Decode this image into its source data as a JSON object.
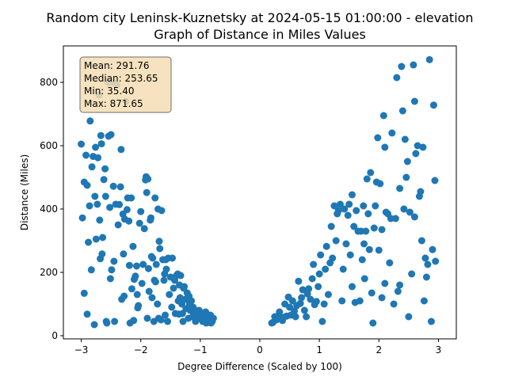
{
  "chart_data": {
    "type": "scatter",
    "title_line1": "Random city Leninsk-Kuznetsky at 2024-05-15 01:00:00  - elevation",
    "title_line2": "Graph of Distance in Miles Values",
    "xlabel": "Degree Difference (Scaled by 100)",
    "ylabel": "Distance (Miles)",
    "xlim": [
      -3.3,
      3.3
    ],
    "ylim": [
      -10,
      915
    ],
    "x_ticks": [
      -3,
      -2,
      -1,
      0,
      1,
      2,
      3
    ],
    "y_ticks": [
      0,
      200,
      400,
      600,
      800
    ],
    "grid": false,
    "marker_color": "#1f77b4",
    "stats_box": {
      "mean": "Mean: 291.76",
      "median": "Median: 253.65",
      "min": "Min: 35.40",
      "max": "Max: 871.65",
      "fill": "#f5deb3",
      "edge": "#555555"
    },
    "points": [
      {
        "x": -3.0,
        "y": 605
      },
      {
        "x": -2.98,
        "y": 372
      },
      {
        "x": -2.95,
        "y": 485
      },
      {
        "x": -2.95,
        "y": 134
      },
      {
        "x": -2.92,
        "y": 570
      },
      {
        "x": -2.9,
        "y": 475
      },
      {
        "x": -2.9,
        "y": 68
      },
      {
        "x": -2.88,
        "y": 295
      },
      {
        "x": -2.86,
        "y": 410
      },
      {
        "x": -2.85,
        "y": 678
      },
      {
        "x": -2.83,
        "y": 208
      },
      {
        "x": -2.82,
        "y": 533
      },
      {
        "x": -2.8,
        "y": 566
      },
      {
        "x": -2.78,
        "y": 35
      },
      {
        "x": -2.77,
        "y": 440
      },
      {
        "x": -2.76,
        "y": 595
      },
      {
        "x": -2.75,
        "y": 305
      },
      {
        "x": -2.73,
        "y": 415
      },
      {
        "x": -2.72,
        "y": 562
      },
      {
        "x": -2.7,
        "y": 760
      },
      {
        "x": -2.69,
        "y": 365
      },
      {
        "x": -2.68,
        "y": 243
      },
      {
        "x": -2.67,
        "y": 632
      },
      {
        "x": -2.66,
        "y": 606
      },
      {
        "x": -2.65,
        "y": 258
      },
      {
        "x": -2.64,
        "y": 310
      },
      {
        "x": -2.62,
        "y": 493
      },
      {
        "x": -2.6,
        "y": 527
      },
      {
        "x": -2.59,
        "y": 440
      },
      {
        "x": -2.58,
        "y": 45
      },
      {
        "x": -2.57,
        "y": 40
      },
      {
        "x": -2.55,
        "y": 800
      },
      {
        "x": -2.54,
        "y": 630
      },
      {
        "x": -2.52,
        "y": 405
      },
      {
        "x": -2.51,
        "y": 180
      },
      {
        "x": -2.5,
        "y": 635
      },
      {
        "x": -2.49,
        "y": 208
      },
      {
        "x": -2.47,
        "y": 800
      },
      {
        "x": -2.46,
        "y": 472
      },
      {
        "x": -2.45,
        "y": 235
      },
      {
        "x": -2.44,
        "y": 45
      },
      {
        "x": -2.42,
        "y": 415
      },
      {
        "x": -2.4,
        "y": 792
      },
      {
        "x": -2.38,
        "y": 350
      },
      {
        "x": -2.36,
        "y": 414
      },
      {
        "x": -2.34,
        "y": 470
      },
      {
        "x": -2.33,
        "y": 588
      },
      {
        "x": -2.32,
        "y": 115
      },
      {
        "x": -2.3,
        "y": 384
      },
      {
        "x": -2.29,
        "y": 258
      },
      {
        "x": -2.28,
        "y": 125
      },
      {
        "x": -2.27,
        "y": 368
      },
      {
        "x": -2.25,
        "y": 740
      },
      {
        "x": -2.23,
        "y": 398
      },
      {
        "x": -2.22,
        "y": 435
      },
      {
        "x": -2.2,
        "y": 362
      },
      {
        "x": -2.19,
        "y": 222
      },
      {
        "x": -2.18,
        "y": 40
      },
      {
        "x": -2.16,
        "y": 435
      },
      {
        "x": -2.15,
        "y": 148
      },
      {
        "x": -2.13,
        "y": 282
      },
      {
        "x": -2.12,
        "y": 48
      },
      {
        "x": -2.11,
        "y": 178
      },
      {
        "x": -2.09,
        "y": 188
      },
      {
        "x": -2.07,
        "y": 220
      },
      {
        "x": -2.06,
        "y": 130
      },
      {
        "x": -2.05,
        "y": 88
      },
      {
        "x": -2.04,
        "y": 95
      },
      {
        "x": -2.02,
        "y": 355
      },
      {
        "x": -2.0,
        "y": 392
      },
      {
        "x": -1.98,
        "y": 165
      },
      {
        "x": -1.96,
        "y": 225
      },
      {
        "x": -1.94,
        "y": 338
      },
      {
        "x": -1.92,
        "y": 492
      },
      {
        "x": -1.91,
        "y": 502
      },
      {
        "x": -1.9,
        "y": 452
      },
      {
        "x": -1.89,
        "y": 55
      },
      {
        "x": -1.88,
        "y": 495
      },
      {
        "x": -1.87,
        "y": 212
      },
      {
        "x": -1.86,
        "y": 140
      },
      {
        "x": -1.84,
        "y": 365
      },
      {
        "x": -1.83,
        "y": 372
      },
      {
        "x": -1.82,
        "y": 250
      },
      {
        "x": -1.81,
        "y": 120
      },
      {
        "x": -1.8,
        "y": 245
      },
      {
        "x": -1.78,
        "y": 45
      },
      {
        "x": -1.77,
        "y": 175
      },
      {
        "x": -1.76,
        "y": 435
      },
      {
        "x": -1.75,
        "y": 170
      },
      {
        "x": -1.74,
        "y": 225
      },
      {
        "x": -1.72,
        "y": 100
      },
      {
        "x": -1.71,
        "y": 400
      },
      {
        "x": -1.7,
        "y": 55
      },
      {
        "x": -1.69,
        "y": 298
      },
      {
        "x": -1.68,
        "y": 275
      },
      {
        "x": -1.66,
        "y": 50
      },
      {
        "x": -1.65,
        "y": 395
      },
      {
        "x": -1.63,
        "y": 240
      },
      {
        "x": -1.61,
        "y": 175
      },
      {
        "x": -1.6,
        "y": 195
      },
      {
        "x": -1.59,
        "y": 65
      },
      {
        "x": -1.58,
        "y": 240
      },
      {
        "x": -1.57,
        "y": 210
      },
      {
        "x": -1.55,
        "y": 45
      },
      {
        "x": -1.54,
        "y": 245
      },
      {
        "x": -1.52,
        "y": 130
      },
      {
        "x": -1.5,
        "y": 185
      },
      {
        "x": -1.48,
        "y": 90
      },
      {
        "x": -1.47,
        "y": 245
      },
      {
        "x": -1.45,
        "y": 150
      },
      {
        "x": -1.43,
        "y": 175
      },
      {
        "x": -1.42,
        "y": 70
      },
      {
        "x": -1.4,
        "y": 190
      },
      {
        "x": -1.38,
        "y": 195
      },
      {
        "x": -1.37,
        "y": 110
      },
      {
        "x": -1.36,
        "y": 68
      },
      {
        "x": -1.35,
        "y": 160
      },
      {
        "x": -1.34,
        "y": 120
      },
      {
        "x": -1.33,
        "y": 190
      },
      {
        "x": -1.31,
        "y": 100
      },
      {
        "x": -1.3,
        "y": 70
      },
      {
        "x": -1.29,
        "y": 45
      },
      {
        "x": -1.28,
        "y": 150
      },
      {
        "x": -1.27,
        "y": 155
      },
      {
        "x": -1.25,
        "y": 115
      },
      {
        "x": -1.24,
        "y": 85
      },
      {
        "x": -1.22,
        "y": 135
      },
      {
        "x": -1.2,
        "y": 55
      },
      {
        "x": -1.19,
        "y": 125
      },
      {
        "x": -1.18,
        "y": 100
      },
      {
        "x": -1.17,
        "y": 80
      },
      {
        "x": -1.15,
        "y": 110
      },
      {
        "x": -1.13,
        "y": 60
      },
      {
        "x": -1.12,
        "y": 90
      },
      {
        "x": -1.1,
        "y": 75
      },
      {
        "x": -1.08,
        "y": 45
      },
      {
        "x": -1.07,
        "y": 65
      },
      {
        "x": -1.05,
        "y": 78
      },
      {
        "x": -1.04,
        "y": 55
      },
      {
        "x": -1.02,
        "y": 80
      },
      {
        "x": -1.0,
        "y": 70
      },
      {
        "x": -0.98,
        "y": 60
      },
      {
        "x": -0.96,
        "y": 45
      },
      {
        "x": -0.95,
        "y": 68
      },
      {
        "x": -0.93,
        "y": 55
      },
      {
        "x": -0.91,
        "y": 75
      },
      {
        "x": -0.9,
        "y": 40
      },
      {
        "x": -0.88,
        "y": 60
      },
      {
        "x": -0.86,
        "y": 55
      },
      {
        "x": -0.85,
        "y": 42
      },
      {
        "x": -0.83,
        "y": 65
      },
      {
        "x": -0.82,
        "y": 40
      },
      {
        "x": -0.8,
        "y": 45
      },
      {
        "x": -0.78,
        "y": 55
      },
      {
        "x": 0.2,
        "y": 40
      },
      {
        "x": 0.22,
        "y": 42
      },
      {
        "x": 0.25,
        "y": 60
      },
      {
        "x": 0.28,
        "y": 50
      },
      {
        "x": 0.3,
        "y": 62
      },
      {
        "x": 0.33,
        "y": 75
      },
      {
        "x": 0.35,
        "y": 55
      },
      {
        "x": 0.38,
        "y": 48
      },
      {
        "x": 0.4,
        "y": 58
      },
      {
        "x": 0.42,
        "y": 100
      },
      {
        "x": 0.45,
        "y": 62
      },
      {
        "x": 0.48,
        "y": 122
      },
      {
        "x": 0.5,
        "y": 90
      },
      {
        "x": 0.52,
        "y": 65
      },
      {
        "x": 0.55,
        "y": 110
      },
      {
        "x": 0.58,
        "y": 78
      },
      {
        "x": 0.6,
        "y": 60
      },
      {
        "x": 0.62,
        "y": 95
      },
      {
        "x": 0.65,
        "y": 172
      },
      {
        "x": 0.68,
        "y": 102
      },
      {
        "x": 0.7,
        "y": 120
      },
      {
        "x": 0.72,
        "y": 145
      },
      {
        "x": 0.75,
        "y": 80
      },
      {
        "x": 0.78,
        "y": 60
      },
      {
        "x": 0.8,
        "y": 132
      },
      {
        "x": 0.82,
        "y": 148
      },
      {
        "x": 0.85,
        "y": 115
      },
      {
        "x": 0.88,
        "y": 180
      },
      {
        "x": 0.9,
        "y": 225
      },
      {
        "x": 0.92,
        "y": 98
      },
      {
        "x": 0.95,
        "y": 108
      },
      {
        "x": 0.98,
        "y": 155
      },
      {
        "x": 1.0,
        "y": 195
      },
      {
        "x": 1.02,
        "y": 255
      },
      {
        "x": 1.05,
        "y": 45
      },
      {
        "x": 1.08,
        "y": 100
      },
      {
        "x": 1.1,
        "y": 210
      },
      {
        "x": 1.12,
        "y": 282
      },
      {
        "x": 1.15,
        "y": 130
      },
      {
        "x": 1.18,
        "y": 230
      },
      {
        "x": 1.2,
        "y": 345
      },
      {
        "x": 1.22,
        "y": 245
      },
      {
        "x": 1.25,
        "y": 410
      },
      {
        "x": 1.28,
        "y": 300
      },
      {
        "x": 1.3,
        "y": 385
      },
      {
        "x": 1.32,
        "y": 395
      },
      {
        "x": 1.35,
        "y": 415
      },
      {
        "x": 1.38,
        "y": 110
      },
      {
        "x": 1.4,
        "y": 210
      },
      {
        "x": 1.42,
        "y": 400
      },
      {
        "x": 1.45,
        "y": 290
      },
      {
        "x": 1.48,
        "y": 380
      },
      {
        "x": 1.5,
        "y": 415
      },
      {
        "x": 1.52,
        "y": 255
      },
      {
        "x": 1.55,
        "y": 445
      },
      {
        "x": 1.58,
        "y": 345
      },
      {
        "x": 1.6,
        "y": 105
      },
      {
        "x": 1.62,
        "y": 395
      },
      {
        "x": 1.65,
        "y": 330
      },
      {
        "x": 1.68,
        "y": 110
      },
      {
        "x": 1.7,
        "y": 330
      },
      {
        "x": 1.72,
        "y": 240
      },
      {
        "x": 1.74,
        "y": 410
      },
      {
        "x": 1.76,
        "y": 180
      },
      {
        "x": 1.78,
        "y": 330
      },
      {
        "x": 1.8,
        "y": 495
      },
      {
        "x": 1.82,
        "y": 385
      },
      {
        "x": 1.84,
        "y": 272
      },
      {
        "x": 1.86,
        "y": 515
      },
      {
        "x": 1.88,
        "y": 135
      },
      {
        "x": 1.9,
        "y": 40
      },
      {
        "x": 1.92,
        "y": 340
      },
      {
        "x": 1.94,
        "y": 410
      },
      {
        "x": 1.96,
        "y": 485
      },
      {
        "x": 1.98,
        "y": 625
      },
      {
        "x": 2.0,
        "y": 270
      },
      {
        "x": 2.02,
        "y": 480
      },
      {
        "x": 2.05,
        "y": 120
      },
      {
        "x": 2.08,
        "y": 695
      },
      {
        "x": 2.1,
        "y": 595
      },
      {
        "x": 2.12,
        "y": 390
      },
      {
        "x": 2.15,
        "y": 385
      },
      {
        "x": 2.18,
        "y": 230
      },
      {
        "x": 2.2,
        "y": 370
      },
      {
        "x": 2.22,
        "y": 640
      },
      {
        "x": 2.25,
        "y": 100
      },
      {
        "x": 2.28,
        "y": 370
      },
      {
        "x": 2.3,
        "y": 815
      },
      {
        "x": 2.32,
        "y": 140
      },
      {
        "x": 2.35,
        "y": 465
      },
      {
        "x": 2.38,
        "y": 850
      },
      {
        "x": 2.4,
        "y": 710
      },
      {
        "x": 2.42,
        "y": 400
      },
      {
        "x": 2.44,
        "y": 620
      },
      {
        "x": 2.46,
        "y": 500
      },
      {
        "x": 2.48,
        "y": 550
      },
      {
        "x": 2.5,
        "y": 60
      },
      {
        "x": 2.52,
        "y": 390
      },
      {
        "x": 2.55,
        "y": 195
      },
      {
        "x": 2.58,
        "y": 855
      },
      {
        "x": 2.6,
        "y": 740
      },
      {
        "x": 2.62,
        "y": 575
      },
      {
        "x": 2.65,
        "y": 600
      },
      {
        "x": 2.68,
        "y": 440
      },
      {
        "x": 2.7,
        "y": 455
      },
      {
        "x": 2.72,
        "y": 300
      },
      {
        "x": 2.74,
        "y": 595
      },
      {
        "x": 2.76,
        "y": 110
      },
      {
        "x": 2.78,
        "y": 245
      },
      {
        "x": 2.8,
        "y": 185
      },
      {
        "x": 2.82,
        "y": 225
      },
      {
        "x": 2.85,
        "y": 871.65
      },
      {
        "x": 2.88,
        "y": 45
      },
      {
        "x": 2.9,
        "y": 272
      },
      {
        "x": 2.92,
        "y": 728
      },
      {
        "x": 2.94,
        "y": 490
      },
      {
        "x": 2.95,
        "y": 235
      },
      {
        "x": 2.1,
        "y": 165
      },
      {
        "x": 1.55,
        "y": 155
      },
      {
        "x": 2.35,
        "y": 160
      },
      {
        "x": 2.6,
        "y": 375
      },
      {
        "x": 2.05,
        "y": 335
      },
      {
        "x": 1.75,
        "y": 290
      }
    ]
  }
}
